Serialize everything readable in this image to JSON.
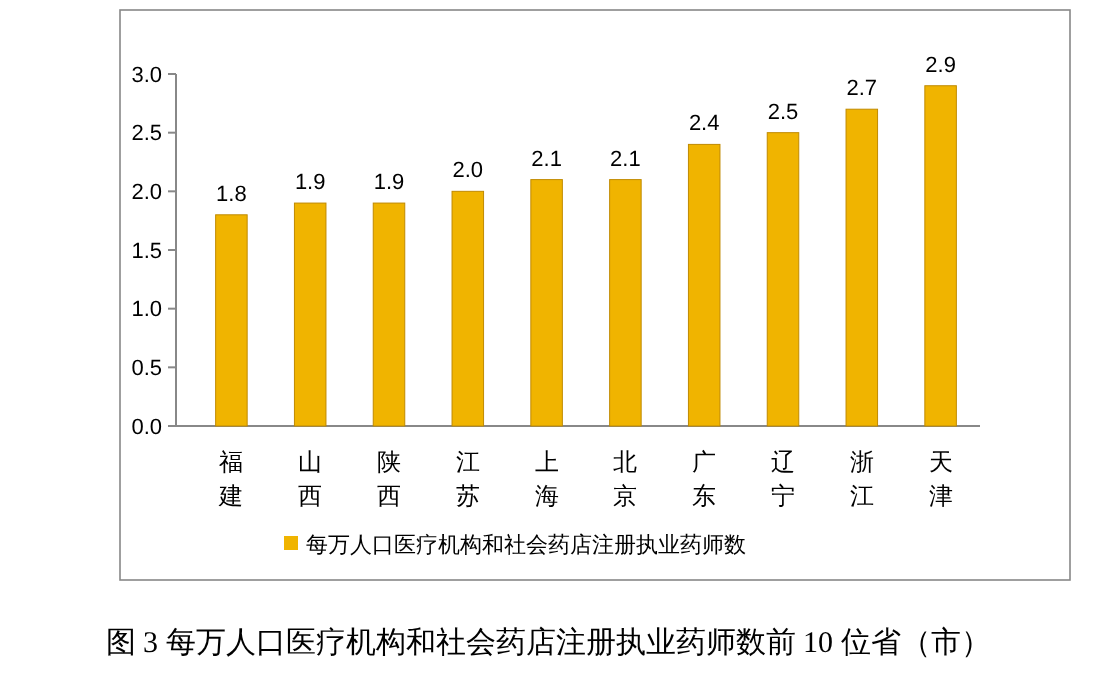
{
  "chart_data": {
    "type": "bar",
    "title": "图 3 每万人口医疗机构和社会药店注册执业药师数前 10 位省（市）",
    "categories": [
      "福建",
      "山西",
      "陕西",
      "江苏",
      "上海",
      "北京",
      "广东",
      "辽宁",
      "浙江",
      "天津"
    ],
    "series": [
      {
        "name": "每万人口医疗机构和社会药店注册执业药师数",
        "color": "#f0b400",
        "values": [
          1.8,
          1.9,
          1.9,
          2.0,
          2.1,
          2.1,
          2.4,
          2.5,
          2.7,
          2.9
        ]
      }
    ],
    "value_labels": [
      "1.8",
      "1.9",
      "1.9",
      "2.0",
      "2.1",
      "2.1",
      "2.4",
      "2.5",
      "2.7",
      "2.9"
    ],
    "ylim": [
      0,
      3
    ],
    "yticks": [
      {
        "value": 0,
        "label": "0.0"
      },
      {
        "value": 0.5,
        "label": "0.5"
      },
      {
        "value": 1,
        "label": "1.0"
      },
      {
        "value": 1.5,
        "label": "1.5"
      },
      {
        "value": 2,
        "label": "2.0"
      },
      {
        "value": 2.5,
        "label": "2.5"
      },
      {
        "value": 3,
        "label": "3.0"
      }
    ],
    "grid": false,
    "legend": "bottom"
  }
}
